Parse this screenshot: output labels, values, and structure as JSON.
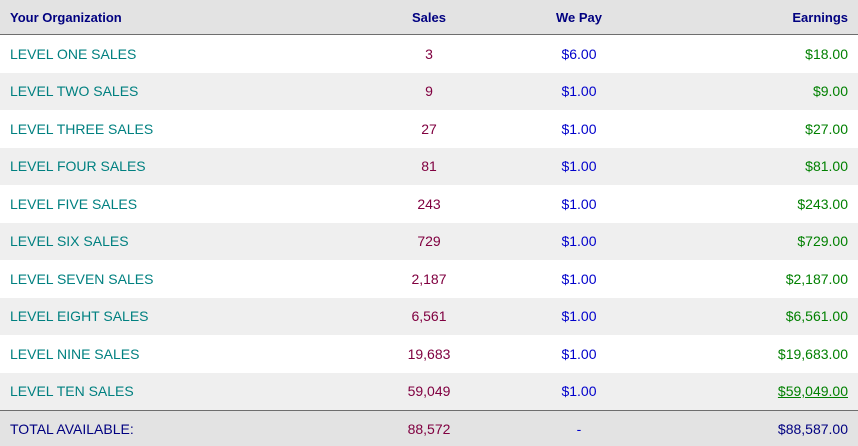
{
  "header": {
    "col_org": "Your Organization",
    "col_sales": "Sales",
    "col_pay": "We Pay",
    "col_earnings": "Earnings"
  },
  "rows": [
    {
      "label": "LEVEL ONE SALES",
      "sales": "3",
      "pay": "$6.00",
      "earnings": "$18.00"
    },
    {
      "label": "LEVEL TWO SALES",
      "sales": "9",
      "pay": "$1.00",
      "earnings": "$9.00"
    },
    {
      "label": "LEVEL THREE SALES",
      "sales": "27",
      "pay": "$1.00",
      "earnings": "$27.00"
    },
    {
      "label": "LEVEL FOUR SALES",
      "sales": "81",
      "pay": "$1.00",
      "earnings": "$81.00"
    },
    {
      "label": "LEVEL FIVE SALES",
      "sales": "243",
      "pay": "$1.00",
      "earnings": "$243.00"
    },
    {
      "label": "LEVEL SIX SALES",
      "sales": "729",
      "pay": "$1.00",
      "earnings": "$729.00"
    },
    {
      "label": "LEVEL SEVEN SALES",
      "sales": "2,187",
      "pay": "$1.00",
      "earnings": "$2,187.00"
    },
    {
      "label": "LEVEL EIGHT SALES",
      "sales": "6,561",
      "pay": "$1.00",
      "earnings": "$6,561.00"
    },
    {
      "label": "LEVEL NINE SALES",
      "sales": "19,683",
      "pay": "$1.00",
      "earnings": "$19,683.00"
    },
    {
      "label": "LEVEL TEN SALES",
      "sales": "59,049",
      "pay": "$1.00",
      "earnings": "$59,049.00"
    }
  ],
  "total": {
    "label": "TOTAL AVAILABLE:",
    "sales": "88,572",
    "pay": "-",
    "earnings": "$88,587.00"
  },
  "colors": {
    "header_text": "#000080",
    "level_label": "#008080",
    "sales_value": "#800040",
    "pay_value": "#0000cc",
    "earnings_value": "#008000"
  }
}
